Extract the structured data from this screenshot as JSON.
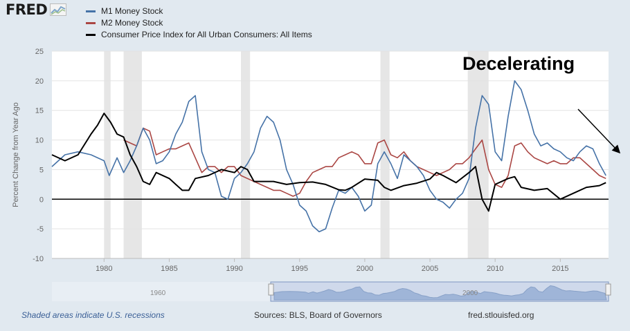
{
  "app": {
    "logo_text": "FRED"
  },
  "colors": {
    "m1": "#4572a7",
    "m2": "#aa4643",
    "cpi": "#000000",
    "recession": "#e6e6e6",
    "background": "#e1e9f0"
  },
  "chart_data": {
    "type": "line",
    "title": "",
    "annotation": "Decelerating",
    "ylabel": "Percent Change from Year Ago",
    "xlabel": "",
    "ylim": [
      -10,
      25
    ],
    "xlim": [
      1976.0,
      2018.7
    ],
    "grid": true,
    "legend_position": "top-left",
    "yticks": [
      "-10",
      "-5",
      "0",
      "5",
      "10",
      "15",
      "20",
      "25"
    ],
    "xticks": [
      "1980",
      "1985",
      "1990",
      "1995",
      "2000",
      "2005",
      "2010",
      "2015"
    ],
    "recessions": [
      [
        1980.0,
        1980.5
      ],
      [
        1981.5,
        1982.9
      ],
      [
        1990.5,
        1991.2
      ],
      [
        2001.2,
        2001.9
      ],
      [
        2007.9,
        2009.5
      ]
    ],
    "series": [
      {
        "name": "M1 Money Stock",
        "color": "#4572a7",
        "x": [
          1976.0,
          1977.0,
          1978.0,
          1979.0,
          1980.0,
          1980.4,
          1981.0,
          1981.5,
          1982.0,
          1982.5,
          1983.0,
          1983.5,
          1984.0,
          1984.5,
          1985.0,
          1985.5,
          1986.0,
          1986.5,
          1987.0,
          1987.5,
          1988.0,
          1988.5,
          1989.0,
          1989.5,
          1990.0,
          1990.5,
          1991.0,
          1991.5,
          1992.0,
          1992.5,
          1993.0,
          1993.5,
          1994.0,
          1994.5,
          1995.0,
          1995.5,
          1996.0,
          1996.5,
          1997.0,
          1997.5,
          1998.0,
          1998.5,
          1999.0,
          1999.5,
          2000.0,
          2000.5,
          2001.0,
          2001.5,
          2002.0,
          2002.5,
          2003.0,
          2003.5,
          2004.0,
          2004.5,
          2005.0,
          2005.5,
          2006.0,
          2006.5,
          2007.0,
          2007.5,
          2008.0,
          2008.5,
          2009.0,
          2009.5,
          2010.0,
          2010.5,
          2011.0,
          2011.5,
          2012.0,
          2012.5,
          2013.0,
          2013.5,
          2014.0,
          2014.5,
          2015.0,
          2015.5,
          2016.0,
          2016.5,
          2017.0,
          2017.5,
          2018.0,
          2018.5
        ],
        "values": [
          5.5,
          7.5,
          8.0,
          7.5,
          6.5,
          4.0,
          7.0,
          4.5,
          6.5,
          9.0,
          12.0,
          10.0,
          6.0,
          6.5,
          8.0,
          11.0,
          13.0,
          16.5,
          17.5,
          8.0,
          5.0,
          4.5,
          0.5,
          0.0,
          3.5,
          4.5,
          6.0,
          8.0,
          12.0,
          14.0,
          13.0,
          10.0,
          5.0,
          2.5,
          -1.0,
          -2.0,
          -4.5,
          -5.5,
          -5.0,
          -1.5,
          1.5,
          1.0,
          2.0,
          0.5,
          -2.0,
          -1.0,
          6.0,
          8.0,
          6.0,
          3.5,
          7.5,
          6.5,
          5.5,
          4.0,
          1.5,
          0.0,
          -0.5,
          -1.5,
          0.0,
          1.0,
          3.5,
          12.0,
          17.5,
          16.0,
          8.0,
          6.5,
          14.0,
          20.0,
          18.5,
          15.0,
          11.0,
          9.0,
          9.5,
          8.5,
          8.0,
          7.0,
          6.5,
          8.0,
          9.0,
          8.5,
          6.0,
          4.0
        ]
      },
      {
        "name": "M2 Money Stock",
        "color": "#aa4643",
        "x": [
          1981.5,
          1982.0,
          1982.5,
          1983.0,
          1983.5,
          1984.0,
          1984.5,
          1985.0,
          1985.5,
          1986.0,
          1986.5,
          1987.0,
          1987.5,
          1988.0,
          1988.5,
          1989.0,
          1989.5,
          1990.0,
          1990.5,
          1991.0,
          1991.5,
          1992.0,
          1992.5,
          1993.0,
          1993.5,
          1994.0,
          1994.5,
          1995.0,
          1995.5,
          1996.0,
          1996.5,
          1997.0,
          1997.5,
          1998.0,
          1998.5,
          1999.0,
          1999.5,
          2000.0,
          2000.5,
          2001.0,
          2001.5,
          2002.0,
          2002.5,
          2003.0,
          2003.5,
          2004.0,
          2004.5,
          2005.0,
          2005.5,
          2006.0,
          2006.5,
          2007.0,
          2007.5,
          2008.0,
          2008.5,
          2009.0,
          2009.5,
          2010.0,
          2010.5,
          2011.0,
          2011.5,
          2012.0,
          2012.5,
          2013.0,
          2013.5,
          2014.0,
          2014.5,
          2015.0,
          2015.5,
          2016.0,
          2016.5,
          2017.0,
          2017.5,
          2018.0,
          2018.5
        ],
        "values": [
          10.0,
          9.5,
          9.0,
          12.0,
          11.5,
          7.5,
          8.0,
          8.5,
          8.5,
          9.0,
          9.5,
          7.0,
          4.5,
          5.5,
          5.5,
          4.5,
          5.5,
          5.5,
          4.0,
          3.5,
          3.0,
          2.5,
          2.0,
          1.5,
          1.5,
          1.0,
          0.5,
          1.0,
          3.0,
          4.5,
          5.0,
          5.5,
          5.5,
          7.0,
          7.5,
          8.0,
          7.5,
          6.0,
          6.0,
          9.5,
          10.0,
          7.5,
          7.0,
          8.0,
          6.5,
          5.5,
          5.0,
          4.5,
          4.0,
          4.5,
          5.0,
          6.0,
          6.0,
          7.0,
          8.5,
          10.0,
          5.0,
          2.5,
          2.0,
          4.0,
          9.0,
          9.5,
          8.0,
          7.0,
          6.5,
          6.0,
          6.5,
          6.0,
          6.0,
          7.0,
          7.0,
          6.0,
          5.0,
          4.0,
          3.5
        ]
      },
      {
        "name": "Consumer Price Index for All Urban Consumers: All Items",
        "color": "#000000",
        "x": [
          1976.0,
          1977.0,
          1978.0,
          1979.0,
          1979.5,
          1980.0,
          1980.5,
          1981.0,
          1981.5,
          1982.0,
          1982.5,
          1983.0,
          1983.5,
          1984.0,
          1985.0,
          1986.0,
          1986.5,
          1987.0,
          1988.0,
          1989.0,
          1990.0,
          1990.5,
          1991.0,
          1991.5,
          1992.0,
          1993.0,
          1994.0,
          1995.0,
          1996.0,
          1997.0,
          1998.0,
          1998.5,
          1999.0,
          2000.0,
          2001.0,
          2001.5,
          2002.0,
          2003.0,
          2004.0,
          2005.0,
          2005.5,
          2006.0,
          2007.0,
          2008.0,
          2008.5,
          2009.0,
          2009.5,
          2010.0,
          2011.0,
          2011.5,
          2012.0,
          2013.0,
          2014.0,
          2015.0,
          2016.0,
          2017.0,
          2018.0,
          2018.5
        ],
        "values": [
          7.5,
          6.5,
          7.5,
          11.0,
          12.5,
          14.5,
          13.0,
          11.0,
          10.5,
          7.5,
          5.5,
          3.0,
          2.5,
          4.5,
          3.5,
          1.5,
          1.5,
          3.5,
          4.0,
          5.0,
          4.5,
          5.5,
          5.0,
          3.0,
          3.0,
          3.0,
          2.5,
          2.8,
          2.9,
          2.5,
          1.6,
          1.5,
          2.0,
          3.4,
          3.2,
          2.0,
          1.5,
          2.3,
          2.7,
          3.4,
          4.5,
          4.0,
          2.8,
          4.5,
          5.5,
          0.0,
          -2.0,
          2.5,
          3.5,
          3.8,
          2.0,
          1.5,
          1.8,
          0.0,
          1.0,
          2.0,
          2.3,
          2.8
        ]
      }
    ]
  },
  "navigator": {
    "tick_labels": [
      "1960",
      "2000"
    ]
  },
  "footer": {
    "note": "Shaded areas indicate U.S. recessions",
    "sources": "Sources: BLS, Board of Governors",
    "url": "fred.stlouisfed.org"
  }
}
